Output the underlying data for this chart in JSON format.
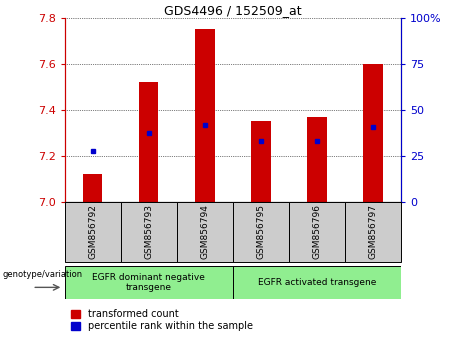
{
  "title": "GDS4496 / 152509_at",
  "samples": [
    "GSM856792",
    "GSM856793",
    "GSM856794",
    "GSM856795",
    "GSM856796",
    "GSM856797"
  ],
  "red_values": [
    7.12,
    7.52,
    7.75,
    7.35,
    7.37,
    7.6
  ],
  "blue_values": [
    7.22,
    7.3,
    7.335,
    7.265,
    7.265,
    7.325
  ],
  "ymin": 7.0,
  "ymax": 7.8,
  "left_yticks": [
    7.0,
    7.2,
    7.4,
    7.6,
    7.8
  ],
  "right_ytick_pcts": [
    0,
    25,
    50,
    75,
    100
  ],
  "right_ytick_labels": [
    "0",
    "25",
    "50",
    "75",
    "100%"
  ],
  "red_color": "#cc0000",
  "blue_color": "#0000cc",
  "bar_width": 0.35,
  "group0_samples": [
    0,
    1,
    2
  ],
  "group0_label": "EGFR dominant negative\ntransgene",
  "group1_samples": [
    3,
    4,
    5
  ],
  "group1_label": "EGFR activated transgene",
  "group_color": "#90ee90",
  "sample_box_color": "#cccccc",
  "genotype_label": "genotype/variation",
  "legend_red_label": "transformed count",
  "legend_blue_label": "percentile rank within the sample"
}
